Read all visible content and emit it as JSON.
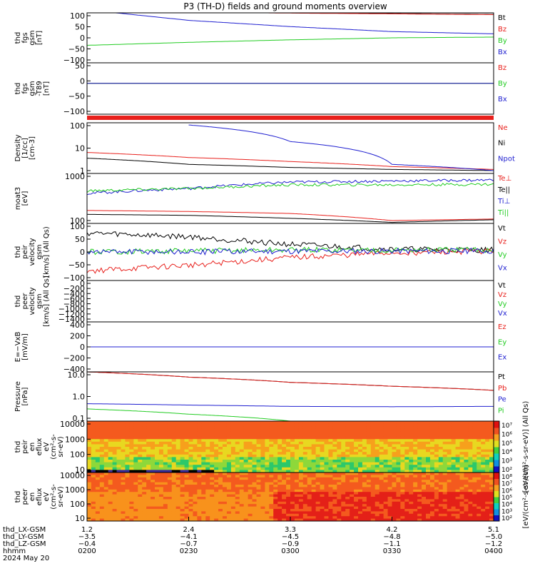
{
  "title": "P3 (TH-D) fields and ground moments overview",
  "colors": {
    "black": "#000000",
    "red": "#e8201c",
    "green": "#22cc22",
    "blue": "#1f1fd0"
  },
  "chart_data": [
    {
      "type": "line",
      "ylabel": [
        "thd",
        "fgs",
        "gsm",
        "[nT]"
      ],
      "ylim": [
        -100,
        100
      ],
      "yticks": [
        "100",
        "50",
        "0",
        "−50",
        "−100"
      ],
      "x": [
        "0200",
        "0230",
        "0300",
        "0330",
        "0400"
      ],
      "series": [
        {
          "name": "Bt",
          "color": "black",
          "values": [
            105,
            104,
            100,
            97,
            94
          ]
        },
        {
          "name": "Bz",
          "color": "red",
          "values": [
            104,
            103,
            99,
            96,
            93
          ]
        },
        {
          "name": "By",
          "color": "green",
          "values": [
            -30,
            -18,
            -8,
            0,
            3
          ]
        },
        {
          "name": "Bx",
          "color": "blue",
          "values": [
            112,
            70,
            45,
            25,
            16
          ]
        }
      ]
    },
    {
      "type": "line",
      "ylabel": [
        "thd",
        "fgs",
        "gsm",
        "-T89",
        "[nT]"
      ],
      "ylim": [
        -120,
        80
      ],
      "yticks": [
        "50",
        "0",
        "−50",
        "−100"
      ],
      "series": [
        {
          "name": "Bz",
          "color": "red",
          "values": [
            0,
            0,
            0,
            0,
            0
          ]
        },
        {
          "name": "By",
          "color": "green",
          "values": [
            0,
            0,
            0,
            0,
            0
          ]
        },
        {
          "name": "Bx",
          "color": "blue",
          "values": [
            0,
            0,
            0,
            0,
            0
          ]
        }
      ]
    },
    {
      "type": "line",
      "log": true,
      "ylabel": [
        "Density",
        "[1/cc]",
        "[cm-3]"
      ],
      "ylim": [
        0.6,
        100
      ],
      "yticks": [
        "100",
        "10",
        "1"
      ],
      "series": [
        {
          "name": "Ne",
          "color": "red",
          "values": [
            5,
            3,
            2,
            1.2,
            0.9
          ]
        },
        {
          "name": "Ni",
          "color": "black",
          "values": [
            2.8,
            1.5,
            1.1,
            0.9,
            0.8
          ]
        },
        {
          "name": "Npot",
          "color": "blue",
          "values": [
            null,
            80,
            15,
            1.5,
            0.8
          ]
        }
      ]
    },
    {
      "type": "line",
      "log": true,
      "ylabel": [
        "moat3",
        "[eV]"
      ],
      "ylim": [
        100,
        10000
      ],
      "yticks": [
        "1000",
        "100"
      ],
      "series": [
        {
          "name": "Te⊥",
          "color": "red",
          "values": [
            330,
            300,
            250,
            130,
            150
          ]
        },
        {
          "name": "Te||",
          "color": "black",
          "values": [
            230,
            210,
            160,
            110,
            140
          ]
        },
        {
          "name": "Ti⊥",
          "color": "blue",
          "values": [
            1600,
            2500,
            4500,
            5000,
            5500
          ]
        },
        {
          "name": "Ti||",
          "color": "green",
          "values": [
            2000,
            2500,
            3500,
            3500,
            3700
          ]
        }
      ]
    },
    {
      "type": "line",
      "ylabel": [
        "thd",
        "peir",
        "velocity",
        "gsm",
        "[km/s] (All Qs)"
      ],
      "ylim": [
        -150,
        150
      ],
      "yticks": [
        "100",
        "50",
        "0",
        "−50",
        "−100"
      ],
      "series": [
        {
          "name": "Vt",
          "color": "black",
          "values": [
            100,
            80,
            40,
            15,
            10
          ]
        },
        {
          "name": "Vz",
          "color": "red",
          "values": [
            -100,
            -70,
            -30,
            -5,
            5
          ]
        },
        {
          "name": "Vy",
          "color": "green",
          "values": [
            0,
            5,
            10,
            10,
            10
          ]
        },
        {
          "name": "Vx",
          "color": "blue",
          "values": [
            0,
            0,
            5,
            5,
            5
          ]
        }
      ]
    },
    {
      "type": "line",
      "ylabel": [
        "thd",
        "peer",
        "velocity",
        "gsm",
        "[km/s] (All Qs)"
      ],
      "ylim": [
        -1500,
        100
      ],
      "yticks": [
        "0",
        "−200",
        "−400",
        "−600",
        "−800",
        "−1000",
        "−1200",
        "−1400"
      ],
      "series": [
        {
          "name": "Vt",
          "color": "black",
          "values": []
        },
        {
          "name": "Vz",
          "color": "red",
          "values": []
        },
        {
          "name": "Vy",
          "color": "green",
          "values": []
        },
        {
          "name": "Vx",
          "color": "blue",
          "values": []
        }
      ]
    },
    {
      "type": "line",
      "ylabel": [
        "E=−VxB",
        "[mV/m]"
      ],
      "ylim": [
        -500,
        500
      ],
      "yticks": [
        "400",
        "200",
        "0",
        "−200",
        "−400"
      ],
      "series": [
        {
          "name": "Ez",
          "color": "red",
          "values": [
            0,
            0,
            0,
            0,
            0
          ]
        },
        {
          "name": "Ey",
          "color": "green",
          "values": [
            0,
            0,
            0,
            0,
            0
          ]
        },
        {
          "name": "Ex",
          "color": "blue",
          "values": [
            0,
            0,
            0,
            0,
            0
          ]
        }
      ]
    },
    {
      "type": "line",
      "log": true,
      "ylabel": [
        "Pressure",
        "[nPa]"
      ],
      "ylim": [
        0.06,
        40
      ],
      "yticks": [
        "10.0",
        "1.0",
        "0.1"
      ],
      "series": [
        {
          "name": "Pt",
          "color": "black",
          "values": [
            40,
            20,
            10,
            6,
            3.5
          ]
        },
        {
          "name": "Pb",
          "color": "red",
          "values": [
            40,
            20,
            10,
            6,
            3.5
          ]
        },
        {
          "name": "Pe",
          "color": "blue",
          "values": [
            0.6,
            0.5,
            0.42,
            0.4,
            0.42
          ]
        },
        {
          "name": "Pi",
          "color": "green",
          "values": [
            0.3,
            0.15,
            0.06,
            0.05,
            0.05
          ]
        }
      ]
    },
    {
      "type": "heatmap",
      "ylabel": [
        "thd",
        "peir",
        "en",
        "eflux",
        "eV",
        "(cm²-s-",
        "sr-eV)"
      ],
      "yticks": [
        "10000",
        "1000",
        "100",
        "10"
      ],
      "colorbar": {
        "ticks": [
          "10⁷",
          "10⁶",
          "10⁵",
          "10⁴",
          "10³",
          "10²"
        ],
        "label": "[eV/(cm²-s-sr-eV)] (All Qs)"
      }
    },
    {
      "type": "heatmap",
      "ylabel": [
        "thd",
        "peer",
        "en",
        "eflux",
        "eV",
        "(cm²-s-",
        "sr-eV)"
      ],
      "yticks": [
        "10000",
        "1000",
        "100",
        "10"
      ],
      "colorbar": {
        "ticks": [
          "10⁸",
          "10⁷",
          "10⁶",
          "10⁵",
          "10⁴",
          "10³",
          "10²"
        ],
        "label": "[eV/(cm²-s-sr-eV)]"
      }
    }
  ],
  "xaxis": {
    "row_labels": [
      "thd_LX-GSM",
      "thd_LY-GSM",
      "thd_LZ-GSM",
      "hhmm",
      "2024 May 20"
    ],
    "columns": [
      [
        "1.2",
        "−3.5",
        "−0.4",
        "0200"
      ],
      [
        "2.4",
        "−4.1",
        "−0.7",
        "0230"
      ],
      [
        "3.3",
        "−4.5",
        "−0.9",
        "0300"
      ],
      [
        "4.2",
        "−4.8",
        "−1.1",
        "0330"
      ],
      [
        "5.1",
        "−5.0",
        "−1.2",
        "0400"
      ]
    ]
  }
}
